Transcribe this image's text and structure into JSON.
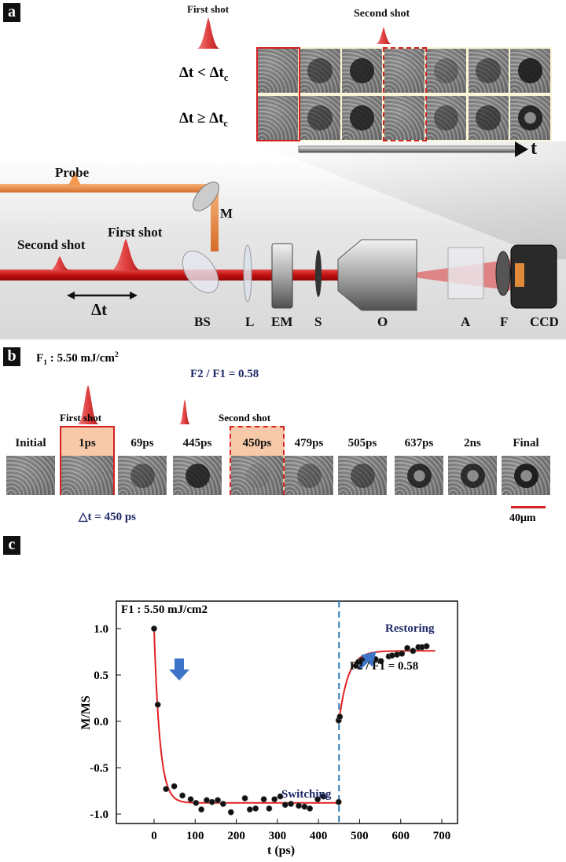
{
  "panel_a": {
    "label": "a",
    "first_shot": "First shot",
    "second_shot": "Second shot",
    "row1_label": "Δt < Δt",
    "row1_sub": "c",
    "row2_label": "Δt ≥ Δt",
    "row2_sub": "c",
    "time_axis": "t",
    "probe": "Probe",
    "mirror": "M",
    "beam_second_shot": "Second shot",
    "beam_first_shot": "First shot",
    "delay": "Δt",
    "components": [
      "BS",
      "L",
      "EM",
      "S",
      "O",
      "A",
      "F",
      "CCD"
    ]
  },
  "panel_b": {
    "label": "b",
    "fluence_prefix": "F",
    "fluence_sub": "1",
    "fluence_value": " : 5.50 mJ/cm",
    "fluence_sup": "2",
    "ratio": "F2 / F1 = 0.58",
    "first_shot": "First shot",
    "second_shot": "Second shot",
    "frames": [
      "Initial",
      "1ps",
      "69ps",
      "445ps",
      "450ps",
      "479ps",
      "505ps",
      "637ps",
      "2ns",
      "Final"
    ],
    "delay": "△t = 450 ps",
    "scale_bar": "40μm",
    "highlight_color": "#f7c9a8",
    "frame_color": "#d42020"
  },
  "panel_c": {
    "label": "c",
    "fluence": "F1 : 5.50 mJ/cm2",
    "switching": "Switching",
    "restoring": "Restoring",
    "ratio": "F2 / F1 = 0.58"
  },
  "chart_data": {
    "type": "scatter",
    "xlabel": "t (ps)",
    "ylabel": "M/MS",
    "xlim": [
      -30,
      740
    ],
    "ylim": [
      -1.25,
      1.2
    ],
    "xticks": [
      0,
      100,
      200,
      300,
      400,
      500,
      600,
      700
    ],
    "yticks": [
      1.0,
      0.5,
      0.0,
      -0.5,
      -1.0
    ],
    "grid": false,
    "vline_x": 450,
    "series": [
      {
        "kind": "points",
        "color": "#111111",
        "x": [
          0,
          9,
          29,
          49,
          69,
          89,
          102,
          115,
          128,
          141,
          155,
          168,
          187,
          221,
          233,
          247,
          267,
          280,
          293,
          307,
          319,
          333,
          352,
          366,
          379,
          398,
          412,
          449,
          449,
          452,
          491,
          497,
          505,
          512,
          539,
          552,
          571,
          579,
          591,
          603,
          616,
          630,
          643,
          652,
          663
        ],
        "y": [
          1.0,
          0.18,
          -0.73,
          -0.7,
          -0.8,
          -0.84,
          -0.88,
          -0.95,
          -0.85,
          -0.87,
          -0.85,
          -0.89,
          -0.98,
          -0.83,
          -0.95,
          -0.94,
          -0.84,
          -0.94,
          -0.84,
          -0.81,
          -0.9,
          -0.89,
          -0.91,
          -0.92,
          -0.94,
          -0.84,
          -0.81,
          -0.87,
          0.01,
          0.05,
          0.6,
          0.64,
          0.66,
          0.68,
          0.67,
          0.65,
          0.7,
          0.71,
          0.72,
          0.73,
          0.79,
          0.76,
          0.8,
          0.8,
          0.81
        ]
      },
      {
        "kind": "fit",
        "color": "#e02020",
        "segments": [
          {
            "from": 0,
            "to": 450,
            "start": 1.0,
            "end": -0.88,
            "tau_ps": 14
          },
          {
            "from": 450,
            "to": 685,
            "start": 0.0,
            "end": 0.76,
            "tau_ps": 22
          }
        ]
      }
    ],
    "annotations": [
      "Switching",
      "Restoring",
      "F2 / F1 = 0.58",
      "F1 : 5.50 mJ/cm2"
    ],
    "accent_colors": {
      "arrow": "#3e74c8",
      "vline": "#2a7ab8",
      "text": "#1d2a66"
    }
  }
}
